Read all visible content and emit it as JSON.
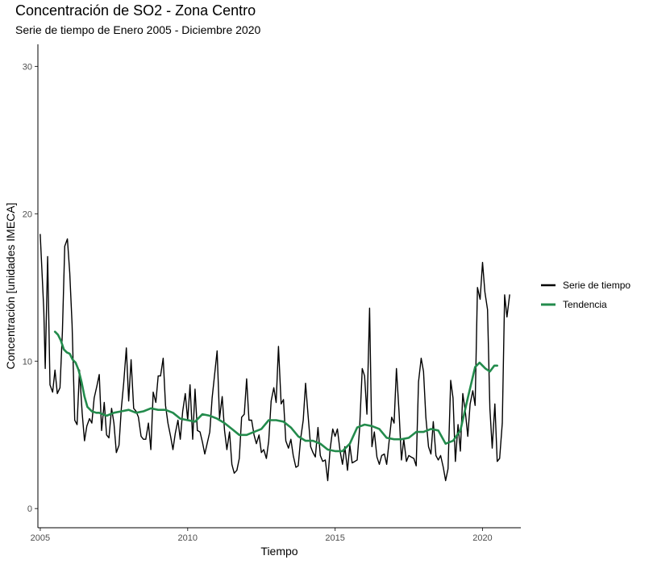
{
  "chart_data": {
    "type": "line",
    "title": "Concentración de SO2 - Zona Centro",
    "subtitle": "Serie de tiempo de Enero 2005 - Diciembre 2020",
    "xlabel": "Tiempo",
    "ylabel": "Concentración [unidades IMECA]",
    "xlim": [
      2004.92,
      2021.3
    ],
    "ylim": [
      -1.3,
      31.5
    ],
    "x_ticks": [
      2005,
      2010,
      2015,
      2020
    ],
    "y_ticks": [
      0,
      10,
      20,
      30
    ],
    "grid": false,
    "legend_position": "right",
    "series": [
      {
        "name": "Serie de tiempo",
        "color": "#000000",
        "points": [
          [
            2005.0,
            18.6
          ],
          [
            2005.12,
            13.5
          ],
          [
            2005.17,
            9.5
          ],
          [
            2005.25,
            17.1
          ],
          [
            2005.33,
            8.4
          ],
          [
            2005.42,
            7.9
          ],
          [
            2005.5,
            9.4
          ],
          [
            2005.58,
            7.8
          ],
          [
            2005.67,
            8.2
          ],
          [
            2005.75,
            12.0
          ],
          [
            2005.83,
            17.8
          ],
          [
            2005.92,
            18.3
          ],
          [
            2006.0,
            16.0
          ],
          [
            2006.08,
            12.5
          ],
          [
            2006.17,
            6.0
          ],
          [
            2006.25,
            5.7
          ],
          [
            2006.33,
            9.4
          ],
          [
            2006.42,
            6.5
          ],
          [
            2006.5,
            4.6
          ],
          [
            2006.58,
            5.6
          ],
          [
            2006.67,
            6.1
          ],
          [
            2006.75,
            5.8
          ],
          [
            2006.83,
            7.5
          ],
          [
            2006.92,
            8.3
          ],
          [
            2007.0,
            9.1
          ],
          [
            2007.08,
            5.3
          ],
          [
            2007.17,
            7.2
          ],
          [
            2007.25,
            5.0
          ],
          [
            2007.33,
            4.8
          ],
          [
            2007.42,
            6.8
          ],
          [
            2007.5,
            5.8
          ],
          [
            2007.58,
            3.8
          ],
          [
            2007.67,
            4.3
          ],
          [
            2007.75,
            6.8
          ],
          [
            2007.83,
            8.5
          ],
          [
            2007.92,
            10.9
          ],
          [
            2008.0,
            7.3
          ],
          [
            2008.08,
            10.1
          ],
          [
            2008.17,
            6.8
          ],
          [
            2008.25,
            6.6
          ],
          [
            2008.33,
            6.2
          ],
          [
            2008.42,
            4.9
          ],
          [
            2008.5,
            4.7
          ],
          [
            2008.58,
            4.7
          ],
          [
            2008.67,
            5.8
          ],
          [
            2008.75,
            4.0
          ],
          [
            2008.83,
            7.9
          ],
          [
            2008.92,
            7.2
          ],
          [
            2009.0,
            9.0
          ],
          [
            2009.08,
            9.0
          ],
          [
            2009.17,
            10.2
          ],
          [
            2009.25,
            7.0
          ],
          [
            2009.33,
            5.8
          ],
          [
            2009.42,
            4.9
          ],
          [
            2009.5,
            4.0
          ],
          [
            2009.58,
            5.1
          ],
          [
            2009.67,
            6.0
          ],
          [
            2009.75,
            4.7
          ],
          [
            2009.83,
            6.6
          ],
          [
            2009.92,
            7.8
          ],
          [
            2010.0,
            6.0
          ],
          [
            2010.08,
            8.4
          ],
          [
            2010.17,
            4.7
          ],
          [
            2010.25,
            8.1
          ],
          [
            2010.33,
            5.3
          ],
          [
            2010.42,
            5.2
          ],
          [
            2010.5,
            4.5
          ],
          [
            2010.58,
            3.7
          ],
          [
            2010.67,
            4.5
          ],
          [
            2010.75,
            5.2
          ],
          [
            2010.83,
            7.5
          ],
          [
            2010.92,
            9.2
          ],
          [
            2011.0,
            10.7
          ],
          [
            2011.08,
            6.1
          ],
          [
            2011.17,
            7.6
          ],
          [
            2011.25,
            5.3
          ],
          [
            2011.33,
            4.0
          ],
          [
            2011.42,
            5.2
          ],
          [
            2011.5,
            3.0
          ],
          [
            2011.58,
            2.4
          ],
          [
            2011.67,
            2.6
          ],
          [
            2011.75,
            3.4
          ],
          [
            2011.83,
            6.2
          ],
          [
            2011.92,
            6.4
          ],
          [
            2012.0,
            8.8
          ],
          [
            2012.08,
            6.0
          ],
          [
            2012.17,
            6.0
          ],
          [
            2012.25,
            5.0
          ],
          [
            2012.33,
            4.4
          ],
          [
            2012.42,
            5.0
          ],
          [
            2012.5,
            3.8
          ],
          [
            2012.58,
            4.0
          ],
          [
            2012.67,
            3.4
          ],
          [
            2012.75,
            4.6
          ],
          [
            2012.83,
            7.3
          ],
          [
            2012.92,
            8.2
          ],
          [
            2013.0,
            7.2
          ],
          [
            2013.08,
            11.0
          ],
          [
            2013.17,
            7.1
          ],
          [
            2013.25,
            7.4
          ],
          [
            2013.33,
            4.6
          ],
          [
            2013.42,
            4.1
          ],
          [
            2013.5,
            4.7
          ],
          [
            2013.58,
            3.6
          ],
          [
            2013.67,
            2.8
          ],
          [
            2013.75,
            2.9
          ],
          [
            2013.83,
            4.7
          ],
          [
            2013.92,
            6.0
          ],
          [
            2014.0,
            8.5
          ],
          [
            2014.08,
            6.4
          ],
          [
            2014.17,
            4.2
          ],
          [
            2014.25,
            3.8
          ],
          [
            2014.33,
            3.5
          ],
          [
            2014.42,
            5.5
          ],
          [
            2014.5,
            3.6
          ],
          [
            2014.58,
            3.2
          ],
          [
            2014.67,
            3.3
          ],
          [
            2014.75,
            1.9
          ],
          [
            2014.83,
            4.0
          ],
          [
            2014.92,
            5.4
          ],
          [
            2015.0,
            4.9
          ],
          [
            2015.08,
            5.4
          ],
          [
            2015.17,
            3.9
          ],
          [
            2015.25,
            3.0
          ],
          [
            2015.33,
            4.2
          ],
          [
            2015.42,
            2.6
          ],
          [
            2015.5,
            4.3
          ],
          [
            2015.58,
            3.1
          ],
          [
            2015.67,
            3.2
          ],
          [
            2015.75,
            3.3
          ],
          [
            2015.83,
            5.4
          ],
          [
            2015.92,
            9.5
          ],
          [
            2016.0,
            9.0
          ],
          [
            2016.08,
            6.4
          ],
          [
            2016.17,
            13.6
          ],
          [
            2016.25,
            4.2
          ],
          [
            2016.33,
            5.2
          ],
          [
            2016.42,
            3.5
          ],
          [
            2016.5,
            3.0
          ],
          [
            2016.58,
            3.6
          ],
          [
            2016.67,
            3.7
          ],
          [
            2016.75,
            3.0
          ],
          [
            2016.83,
            4.5
          ],
          [
            2016.92,
            6.2
          ],
          [
            2017.0,
            5.8
          ],
          [
            2017.08,
            9.5
          ],
          [
            2017.17,
            6.5
          ],
          [
            2017.25,
            3.3
          ],
          [
            2017.33,
            4.7
          ],
          [
            2017.42,
            3.2
          ],
          [
            2017.5,
            3.6
          ],
          [
            2017.58,
            3.5
          ],
          [
            2017.67,
            3.4
          ],
          [
            2017.75,
            2.9
          ],
          [
            2017.83,
            8.6
          ],
          [
            2017.92,
            10.2
          ],
          [
            2018.0,
            9.3
          ],
          [
            2018.08,
            6.2
          ],
          [
            2018.17,
            4.2
          ],
          [
            2018.25,
            3.7
          ],
          [
            2018.33,
            5.9
          ],
          [
            2018.42,
            3.6
          ],
          [
            2018.5,
            3.3
          ],
          [
            2018.58,
            3.6
          ],
          [
            2018.67,
            2.8
          ],
          [
            2018.75,
            1.9
          ],
          [
            2018.83,
            2.7
          ],
          [
            2018.92,
            8.7
          ],
          [
            2019.0,
            7.5
          ],
          [
            2019.08,
            3.2
          ],
          [
            2019.17,
            5.7
          ],
          [
            2019.25,
            3.9
          ],
          [
            2019.33,
            7.8
          ],
          [
            2019.42,
            6.5
          ],
          [
            2019.5,
            4.9
          ],
          [
            2019.58,
            7.1
          ],
          [
            2019.67,
            8.0
          ],
          [
            2019.75,
            7.0
          ],
          [
            2019.83,
            15.0
          ],
          [
            2019.92,
            14.2
          ],
          [
            2020.0,
            16.7
          ],
          [
            2020.08,
            14.7
          ],
          [
            2020.17,
            13.5
          ],
          [
            2020.25,
            6.8
          ],
          [
            2020.33,
            4.1
          ],
          [
            2020.42,
            7.1
          ],
          [
            2020.5,
            3.2
          ],
          [
            2020.58,
            3.4
          ],
          [
            2020.67,
            5.8
          ],
          [
            2020.75,
            14.5
          ],
          [
            2020.83,
            13.0
          ],
          [
            2020.92,
            14.5
          ]
        ]
      },
      {
        "name": "Tendencia",
        "color": "#238b4c",
        "points": [
          [
            2005.5,
            12.0
          ],
          [
            2005.6,
            11.8
          ],
          [
            2005.7,
            11.4
          ],
          [
            2005.8,
            10.8
          ],
          [
            2005.9,
            10.6
          ],
          [
            2006.0,
            10.5
          ],
          [
            2006.1,
            10.1
          ],
          [
            2006.2,
            9.9
          ],
          [
            2006.3,
            9.4
          ],
          [
            2006.4,
            8.6
          ],
          [
            2006.5,
            7.6
          ],
          [
            2006.6,
            6.9
          ],
          [
            2006.75,
            6.6
          ],
          [
            2006.9,
            6.5
          ],
          [
            2007.0,
            6.5
          ],
          [
            2007.25,
            6.3
          ],
          [
            2007.5,
            6.5
          ],
          [
            2007.75,
            6.6
          ],
          [
            2008.0,
            6.7
          ],
          [
            2008.25,
            6.5
          ],
          [
            2008.5,
            6.6
          ],
          [
            2008.75,
            6.8
          ],
          [
            2009.0,
            6.7
          ],
          [
            2009.25,
            6.7
          ],
          [
            2009.5,
            6.5
          ],
          [
            2009.75,
            6.1
          ],
          [
            2010.0,
            6.0
          ],
          [
            2010.25,
            5.9
          ],
          [
            2010.5,
            6.4
          ],
          [
            2010.75,
            6.3
          ],
          [
            2011.0,
            6.1
          ],
          [
            2011.25,
            5.8
          ],
          [
            2011.5,
            5.4
          ],
          [
            2011.75,
            5.0
          ],
          [
            2012.0,
            5.0
          ],
          [
            2012.25,
            5.2
          ],
          [
            2012.5,
            5.4
          ],
          [
            2012.75,
            6.0
          ],
          [
            2013.0,
            6.0
          ],
          [
            2013.25,
            5.9
          ],
          [
            2013.5,
            5.5
          ],
          [
            2013.75,
            4.9
          ],
          [
            2014.0,
            4.6
          ],
          [
            2014.25,
            4.6
          ],
          [
            2014.5,
            4.4
          ],
          [
            2014.75,
            4.0
          ],
          [
            2015.0,
            3.9
          ],
          [
            2015.25,
            3.9
          ],
          [
            2015.5,
            4.4
          ],
          [
            2015.75,
            5.5
          ],
          [
            2016.0,
            5.7
          ],
          [
            2016.25,
            5.6
          ],
          [
            2016.5,
            5.4
          ],
          [
            2016.75,
            4.8
          ],
          [
            2017.0,
            4.7
          ],
          [
            2017.25,
            4.7
          ],
          [
            2017.5,
            4.8
          ],
          [
            2017.75,
            5.2
          ],
          [
            2018.0,
            5.2
          ],
          [
            2018.25,
            5.4
          ],
          [
            2018.5,
            5.3
          ],
          [
            2018.75,
            4.4
          ],
          [
            2019.0,
            4.6
          ],
          [
            2019.25,
            5.3
          ],
          [
            2019.5,
            7.5
          ],
          [
            2019.75,
            9.6
          ],
          [
            2019.9,
            9.9
          ],
          [
            2020.1,
            9.5
          ],
          [
            2020.25,
            9.3
          ],
          [
            2020.4,
            9.7
          ],
          [
            2020.5,
            9.7
          ]
        ]
      }
    ]
  }
}
